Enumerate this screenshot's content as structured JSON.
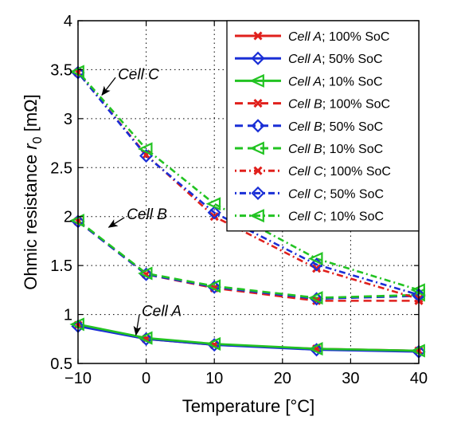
{
  "chart_data": {
    "type": "line",
    "xlabel": "Temperature [°C]",
    "ylabel_main": "Ohmic resistance ",
    "ylabel_var": "r",
    "ylabel_sub": "0",
    "ylabel_unit": " [mΩ]",
    "xlim": [
      -10,
      40
    ],
    "ylim": [
      0.5,
      4
    ],
    "xticks": [
      -10,
      0,
      10,
      20,
      30,
      40
    ],
    "xtick_labels": [
      "−10",
      "0",
      "10",
      "20",
      "30",
      "40"
    ],
    "yticks": [
      0.5,
      1,
      1.5,
      2,
      2.5,
      3,
      3.5,
      4
    ],
    "ytick_labels": [
      "0.5",
      "1",
      "1.5",
      "2",
      "2.5",
      "3",
      "3.5",
      "4"
    ],
    "grid": true,
    "legend_position": "top-right",
    "x": [
      -10,
      0,
      10,
      25,
      40
    ],
    "series": [
      {
        "cell": "Cell A",
        "soc": "; 100% SoC",
        "color": "#e0201c",
        "dash": "solid",
        "marker": "x",
        "values": [
          0.89,
          0.75,
          0.69,
          0.65,
          0.63
        ]
      },
      {
        "cell": "Cell A",
        "soc": "; 50% SoC",
        "color": "#1a2fd6",
        "dash": "solid",
        "marker": "diamond",
        "values": [
          0.88,
          0.75,
          0.69,
          0.64,
          0.62
        ]
      },
      {
        "cell": "Cell A",
        "soc": "; 10% SoC",
        "color": "#22c322",
        "dash": "solid",
        "marker": "triangle-left",
        "values": [
          0.9,
          0.76,
          0.7,
          0.65,
          0.63
        ]
      },
      {
        "cell": "Cell B",
        "soc": "; 100% SoC",
        "color": "#e0201c",
        "dash": "dashed",
        "marker": "x",
        "values": [
          1.95,
          1.41,
          1.27,
          1.14,
          1.14
        ]
      },
      {
        "cell": "Cell B",
        "soc": "; 50% SoC",
        "color": "#1a2fd6",
        "dash": "dashed",
        "marker": "diamond",
        "values": [
          1.95,
          1.41,
          1.28,
          1.16,
          1.19
        ]
      },
      {
        "cell": "Cell B",
        "soc": "; 10% SoC",
        "color": "#22c322",
        "dash": "dashed",
        "marker": "triangle-left",
        "values": [
          1.96,
          1.42,
          1.29,
          1.17,
          1.2
        ]
      },
      {
        "cell": "Cell C",
        "soc": "; 100% SoC",
        "color": "#e0201c",
        "dash": "dashdot",
        "marker": "x",
        "values": [
          3.47,
          2.63,
          2.0,
          1.47,
          1.16
        ]
      },
      {
        "cell": "Cell C",
        "soc": "; 50% SoC",
        "color": "#1a2fd6",
        "dash": "dashdot",
        "marker": "diamond",
        "values": [
          3.47,
          2.62,
          2.04,
          1.51,
          1.2
        ]
      },
      {
        "cell": "Cell C",
        "soc": "; 10% SoC",
        "color": "#22c322",
        "dash": "dashdot",
        "marker": "triangle-left",
        "values": [
          3.48,
          2.69,
          2.13,
          1.57,
          1.25
        ]
      }
    ],
    "annotations": [
      {
        "text": "Cell C",
        "point": [
          -6.5,
          3.24
        ],
        "arrow_from": [
          -4.5,
          3.42
        ]
      },
      {
        "text": "Cell B",
        "point": [
          -5.5,
          1.89
        ],
        "arrow_from": [
          -3.2,
          1.99
        ]
      },
      {
        "text": "Cell A",
        "point": [
          -1.5,
          0.79
        ],
        "arrow_from": [
          -1.0,
          1.0
        ]
      }
    ]
  }
}
